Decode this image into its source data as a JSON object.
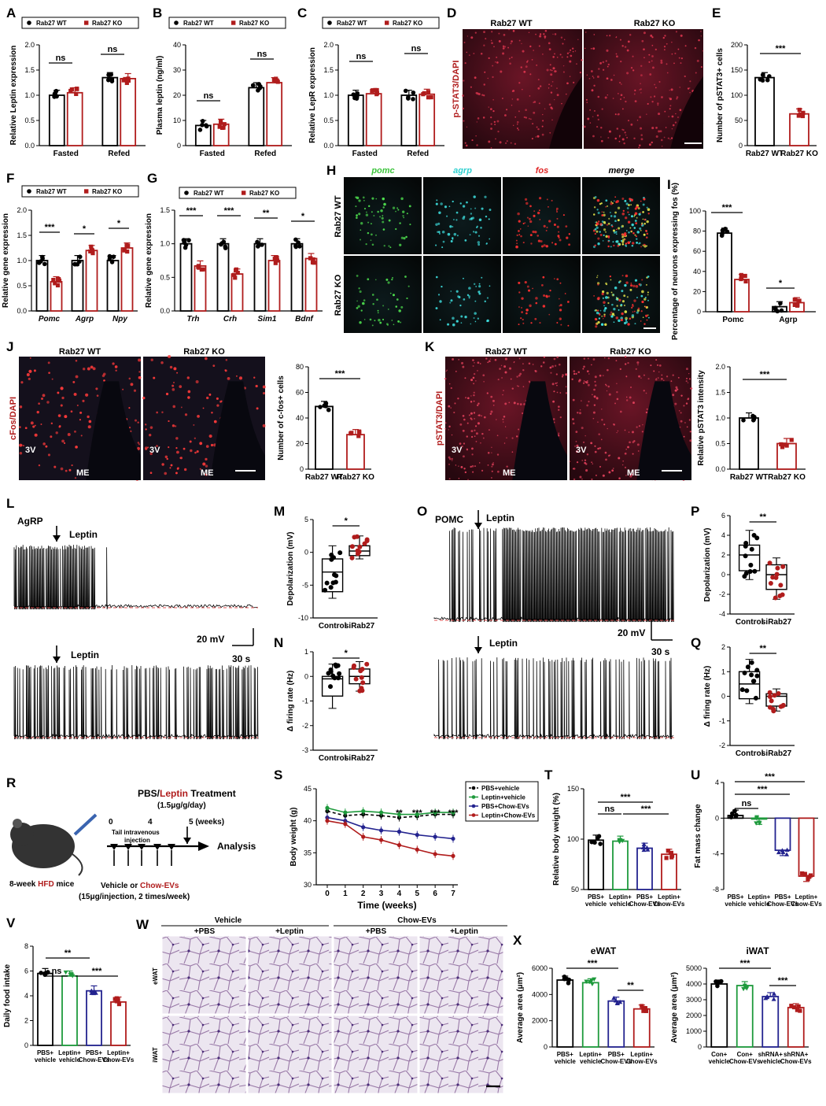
{
  "colors": {
    "wt": "#000000",
    "ko": "#b01c1c",
    "green": "#1e9a3c",
    "blue": "#23238f",
    "red": "#b01c1c",
    "trace": "#000000",
    "baseline": "#e05050"
  },
  "legend": {
    "wt": "Rab27 WT",
    "ko": "Rab27 KO"
  },
  "chart_data": [
    {
      "id": "A",
      "type": "bar",
      "categories": [
        "Fasted",
        "Refed"
      ],
      "ylabel": "Relative Leptin expression",
      "ylim": [
        0,
        2.0
      ],
      "yticks": [
        "0.0",
        "0.5",
        "1.0",
        "1.5",
        "2.0"
      ],
      "series": [
        {
          "name": "Rab27 WT",
          "values": [
            1.0,
            1.35
          ]
        },
        {
          "name": "Rab27 KO",
          "values": [
            1.05,
            1.33
          ]
        }
      ],
      "sig": [
        "ns",
        "ns"
      ]
    },
    {
      "id": "B",
      "type": "bar",
      "categories": [
        "Fasted",
        "Refed"
      ],
      "ylabel": "Plasma leptin (ng/ml)",
      "ylim": [
        0,
        40
      ],
      "yticks": [
        "0",
        "10",
        "20",
        "30",
        "40"
      ],
      "series": [
        {
          "name": "Rab27 WT",
          "values": [
            8,
            23
          ]
        },
        {
          "name": "Rab27 KO",
          "values": [
            8.5,
            25
          ]
        }
      ],
      "sig": [
        "ns",
        "ns"
      ]
    },
    {
      "id": "C",
      "type": "bar",
      "categories": [
        "Fasted",
        "Refed"
      ],
      "ylabel": "Relative LepR expression",
      "ylim": [
        0,
        2.0
      ],
      "yticks": [
        "0.0",
        "0.5",
        "1.0",
        "1.5",
        "2.0"
      ],
      "series": [
        {
          "name": "Rab27 WT",
          "values": [
            1.0,
            1.0
          ]
        },
        {
          "name": "Rab27 KO",
          "values": [
            1.03,
            1.02
          ]
        }
      ],
      "sig": [
        "ns",
        "ns"
      ]
    },
    {
      "id": "E",
      "type": "bar",
      "categories": [
        "Rab27 WT",
        "Rab27 KO"
      ],
      "ylabel": "Number of pSTAT3+ cells",
      "ylim": [
        0,
        200
      ],
      "yticks": [
        "0",
        "50",
        "100",
        "150",
        "200"
      ],
      "values": [
        135,
        63
      ],
      "sig": "***"
    },
    {
      "id": "F",
      "type": "bar",
      "categories": [
        "Pomc",
        "Agrp",
        "Npy"
      ],
      "ylabel": "Relative gene expression",
      "ylim": [
        0,
        2.0
      ],
      "yticks": [
        "0.0",
        "0.5",
        "1.0",
        "1.5",
        "2.0"
      ],
      "series": [
        {
          "name": "Rab27 WT",
          "values": [
            1.0,
            1.0,
            1.0
          ]
        },
        {
          "name": "Rab27 KO",
          "values": [
            0.58,
            1.2,
            1.25
          ]
        }
      ],
      "sig": [
        "***",
        "*",
        "*"
      ]
    },
    {
      "id": "G",
      "type": "bar",
      "categories": [
        "Trh",
        "Crh",
        "Sim1",
        "Bdnf"
      ],
      "ylabel": "Relative gene expression",
      "ylim": [
        0,
        1.5
      ],
      "yticks": [
        "0.0",
        "0.5",
        "1.0",
        "1.5"
      ],
      "series": [
        {
          "name": "Rab27 WT",
          "values": [
            1.0,
            1.0,
            1.0,
            1.0
          ]
        },
        {
          "name": "Rab27 KO",
          "values": [
            0.67,
            0.55,
            0.75,
            0.78
          ]
        }
      ],
      "sig": [
        "***",
        "***",
        "**",
        "*"
      ]
    },
    {
      "id": "I",
      "type": "bar",
      "categories": [
        "Pomc",
        "Agrp"
      ],
      "ylabel": "Percentage of neurons expressing fos (%)",
      "ylim": [
        0,
        100
      ],
      "yticks": [
        "0",
        "20",
        "40",
        "60",
        "80",
        "100"
      ],
      "series": [
        {
          "name": "Rab27 WT",
          "values": [
            78,
            5
          ]
        },
        {
          "name": "Rab27 KO",
          "values": [
            32,
            9
          ]
        }
      ],
      "sig": [
        "***",
        "*"
      ]
    },
    {
      "id": "J",
      "type": "bar",
      "categories": [
        "Rab27 WT",
        "Rab27 KO"
      ],
      "ylabel": "Number of c-fos+ cells",
      "ylim": [
        0,
        80
      ],
      "yticks": [
        "0",
        "20",
        "40",
        "60",
        "80"
      ],
      "values": [
        49,
        27
      ],
      "sig": "***"
    },
    {
      "id": "K",
      "type": "bar",
      "categories": [
        "Rab27 WT",
        "Rab27 KO"
      ],
      "ylabel": "Relative pSTAT3 intensity",
      "ylim": [
        0,
        2.0
      ],
      "yticks": [
        "0.0",
        "0.5",
        "1.0",
        "1.5",
        "2.0"
      ],
      "values": [
        1.0,
        0.5
      ],
      "sig": "***"
    },
    {
      "id": "M",
      "type": "box",
      "categories": [
        "Control",
        "siRab27"
      ],
      "ylabel": "Depolarization (mV)",
      "ylim": [
        -10,
        5
      ],
      "yticks": [
        "-10",
        "-5",
        "0",
        "5"
      ],
      "sig": "*"
    },
    {
      "id": "N",
      "type": "box",
      "categories": [
        "Control",
        "siRab27"
      ],
      "ylabel": "Δ firing rate (Hz)",
      "ylim": [
        -3,
        1
      ],
      "yticks": [
        "-3",
        "-2",
        "-1",
        "0",
        "1"
      ],
      "sig": "*"
    },
    {
      "id": "P",
      "type": "box",
      "categories": [
        "Control",
        "siRab27"
      ],
      "ylabel": "Depolarization (mV)",
      "ylim": [
        -4,
        6
      ],
      "yticks": [
        "-4",
        "-2",
        "0",
        "2",
        "4",
        "6"
      ],
      "sig": "**"
    },
    {
      "id": "Q",
      "type": "box",
      "categories": [
        "Control",
        "siRab27"
      ],
      "ylabel": "Δ firing rate (Hz)",
      "ylim": [
        -2,
        2
      ],
      "yticks": [
        "-2",
        "-1",
        "0",
        "1",
        "2"
      ],
      "sig": "**"
    },
    {
      "id": "S",
      "type": "line",
      "xlabel": "Time (weeks)",
      "ylabel": "Body weight (g)",
      "x": [
        0,
        1,
        2,
        3,
        4,
        5,
        6,
        7
      ],
      "ylim": [
        30,
        45
      ],
      "yticks": [
        "30",
        "35",
        "40",
        "45"
      ],
      "series": [
        {
          "name": "PBS+vehicle",
          "values": [
            41.5,
            40.8,
            41,
            40.8,
            40.5,
            40.7,
            41,
            41
          ]
        },
        {
          "name": "Leptin+vehicle",
          "values": [
            42,
            41.3,
            41.5,
            41.3,
            41,
            41,
            41.3,
            41.3
          ]
        },
        {
          "name": "PBS+Chow-EVs",
          "values": [
            40.5,
            40,
            39,
            38.5,
            38.3,
            37.8,
            37.5,
            37.2
          ]
        },
        {
          "name": "Leptin+Chow-EVs",
          "values": [
            40,
            39.5,
            37.5,
            37,
            36.2,
            35.5,
            34.8,
            34.5
          ]
        }
      ],
      "sig": [
        "",
        "",
        "",
        "",
        "**",
        "***",
        "***",
        "***"
      ]
    },
    {
      "id": "T",
      "type": "bar",
      "categories": [
        "PBS+ vehicle",
        "Leptin+ vehicle",
        "PBS+ Chow-EVs",
        "Leptin+ Chow-EVs"
      ],
      "ylabel": "Relative body weight (%)",
      "ylim": [
        50,
        150
      ],
      "yticks": [
        "50",
        "100",
        "150"
      ],
      "values": [
        99,
        98,
        91,
        85
      ],
      "sig": [
        "***",
        "ns",
        "***"
      ]
    },
    {
      "id": "U",
      "type": "bar",
      "categories": [
        "PBS+ vehicle",
        "Leptin+ vehicle",
        "PBS+ Chow-EVs",
        "Leptin+ Chow-EVs"
      ],
      "ylabel": "Fat mass change",
      "ylim": [
        -8,
        4
      ],
      "yticks": [
        "-8",
        "-4",
        "0",
        "4"
      ],
      "values": [
        0.3,
        -0.1,
        -3.6,
        -6.5
      ],
      "sig": [
        "***",
        "***",
        "ns"
      ]
    },
    {
      "id": "V",
      "type": "bar",
      "categories": [
        "PBS+ vehicle",
        "Leptin+ vehicle",
        "PBS+ Chow-EVs",
        "Leptin+ Chow-EVs"
      ],
      "ylabel": "Daily food intake",
      "ylim": [
        0,
        8
      ],
      "yticks": [
        "0",
        "2",
        "4",
        "6",
        "8"
      ],
      "values": [
        5.8,
        5.6,
        4.4,
        3.5
      ],
      "sig": [
        "**",
        "ns",
        "***"
      ]
    },
    {
      "id": "X1",
      "type": "bar",
      "title": "eWAT",
      "categories": [
        "PBS+ vehicle",
        "Leptin+ vehicle",
        "PBS+ Chow-EVs",
        "Leptin+ Chow-EVs"
      ],
      "ylabel": "Average area (μm²)",
      "ylim": [
        0,
        6000
      ],
      "yticks": [
        "0",
        "2000",
        "4000",
        "6000"
      ],
      "values": [
        5100,
        4900,
        3500,
        2900
      ],
      "sig": [
        "***",
        "**"
      ]
    },
    {
      "id": "X2",
      "type": "bar",
      "title": "iWAT",
      "categories": [
        "Con+ vehicle",
        "Con+ Chow-EVs",
        "shRNA+ vehicle",
        "shRNA+ Chow-EVs"
      ],
      "ylabel": "Average area (μm²)",
      "ylim": [
        0,
        5000
      ],
      "yticks": [
        "0",
        "1000",
        "2000",
        "3000",
        "4000",
        "5000"
      ],
      "values": [
        4000,
        3900,
        3200,
        2500
      ],
      "sig": [
        "***",
        "***"
      ]
    }
  ],
  "panels": {
    "A": "A",
    "B": "B",
    "C": "C",
    "D": "D",
    "E": "E",
    "F": "F",
    "G": "G",
    "H": "H",
    "I": "I",
    "J": "J",
    "K": "K",
    "L": "L",
    "M": "M",
    "N": "N",
    "O": "O",
    "P": "P",
    "Q": "Q",
    "R": "R",
    "S": "S",
    "T": "T",
    "U": "U",
    "V": "V",
    "W": "W",
    "X": "X"
  },
  "micro": {
    "wt": "Rab27 WT",
    "ko": "Rab27 KO",
    "pstat": "p-STAT3/DAPI",
    "pstat2": "pSTAT3/DAPI",
    "cfos": "cFos/DAPI",
    "h_cols": [
      "pomc",
      "agrp",
      "fos",
      "merge"
    ],
    "v3": "3V",
    "me": "ME",
    "w_vehicle": "Vehicle",
    "w_chow": "Chow-EVs",
    "w_pbs": "+PBS",
    "w_leptin": "+Leptin",
    "ewat": "eWAT",
    "iwat": "iWAT"
  },
  "ephys": {
    "agrp": "AgRP",
    "pomc": "POMC",
    "leptin": "Leptin",
    "mv": "20 mV",
    "sec": "30 s"
  },
  "schematic": {
    "treatment_a": "PBS/",
    "treatment_b": "Leptin",
    "treatment_c": " Treatment",
    "dose": "(1.5μg/g/day)",
    "t0": "0",
    "t4": "4",
    "t5": "5 (weeks)",
    "tail": "Tail intravenous",
    "inj": "injection",
    "analysis": "Analysis",
    "mice_a": "8-week ",
    "mice_b": "HFD",
    "mice_c": " mice",
    "veh_a": "Vehicle or ",
    "veh_b": "Chow-EVs",
    "veh_c": "(15μg/injection, 2 times/week)"
  }
}
